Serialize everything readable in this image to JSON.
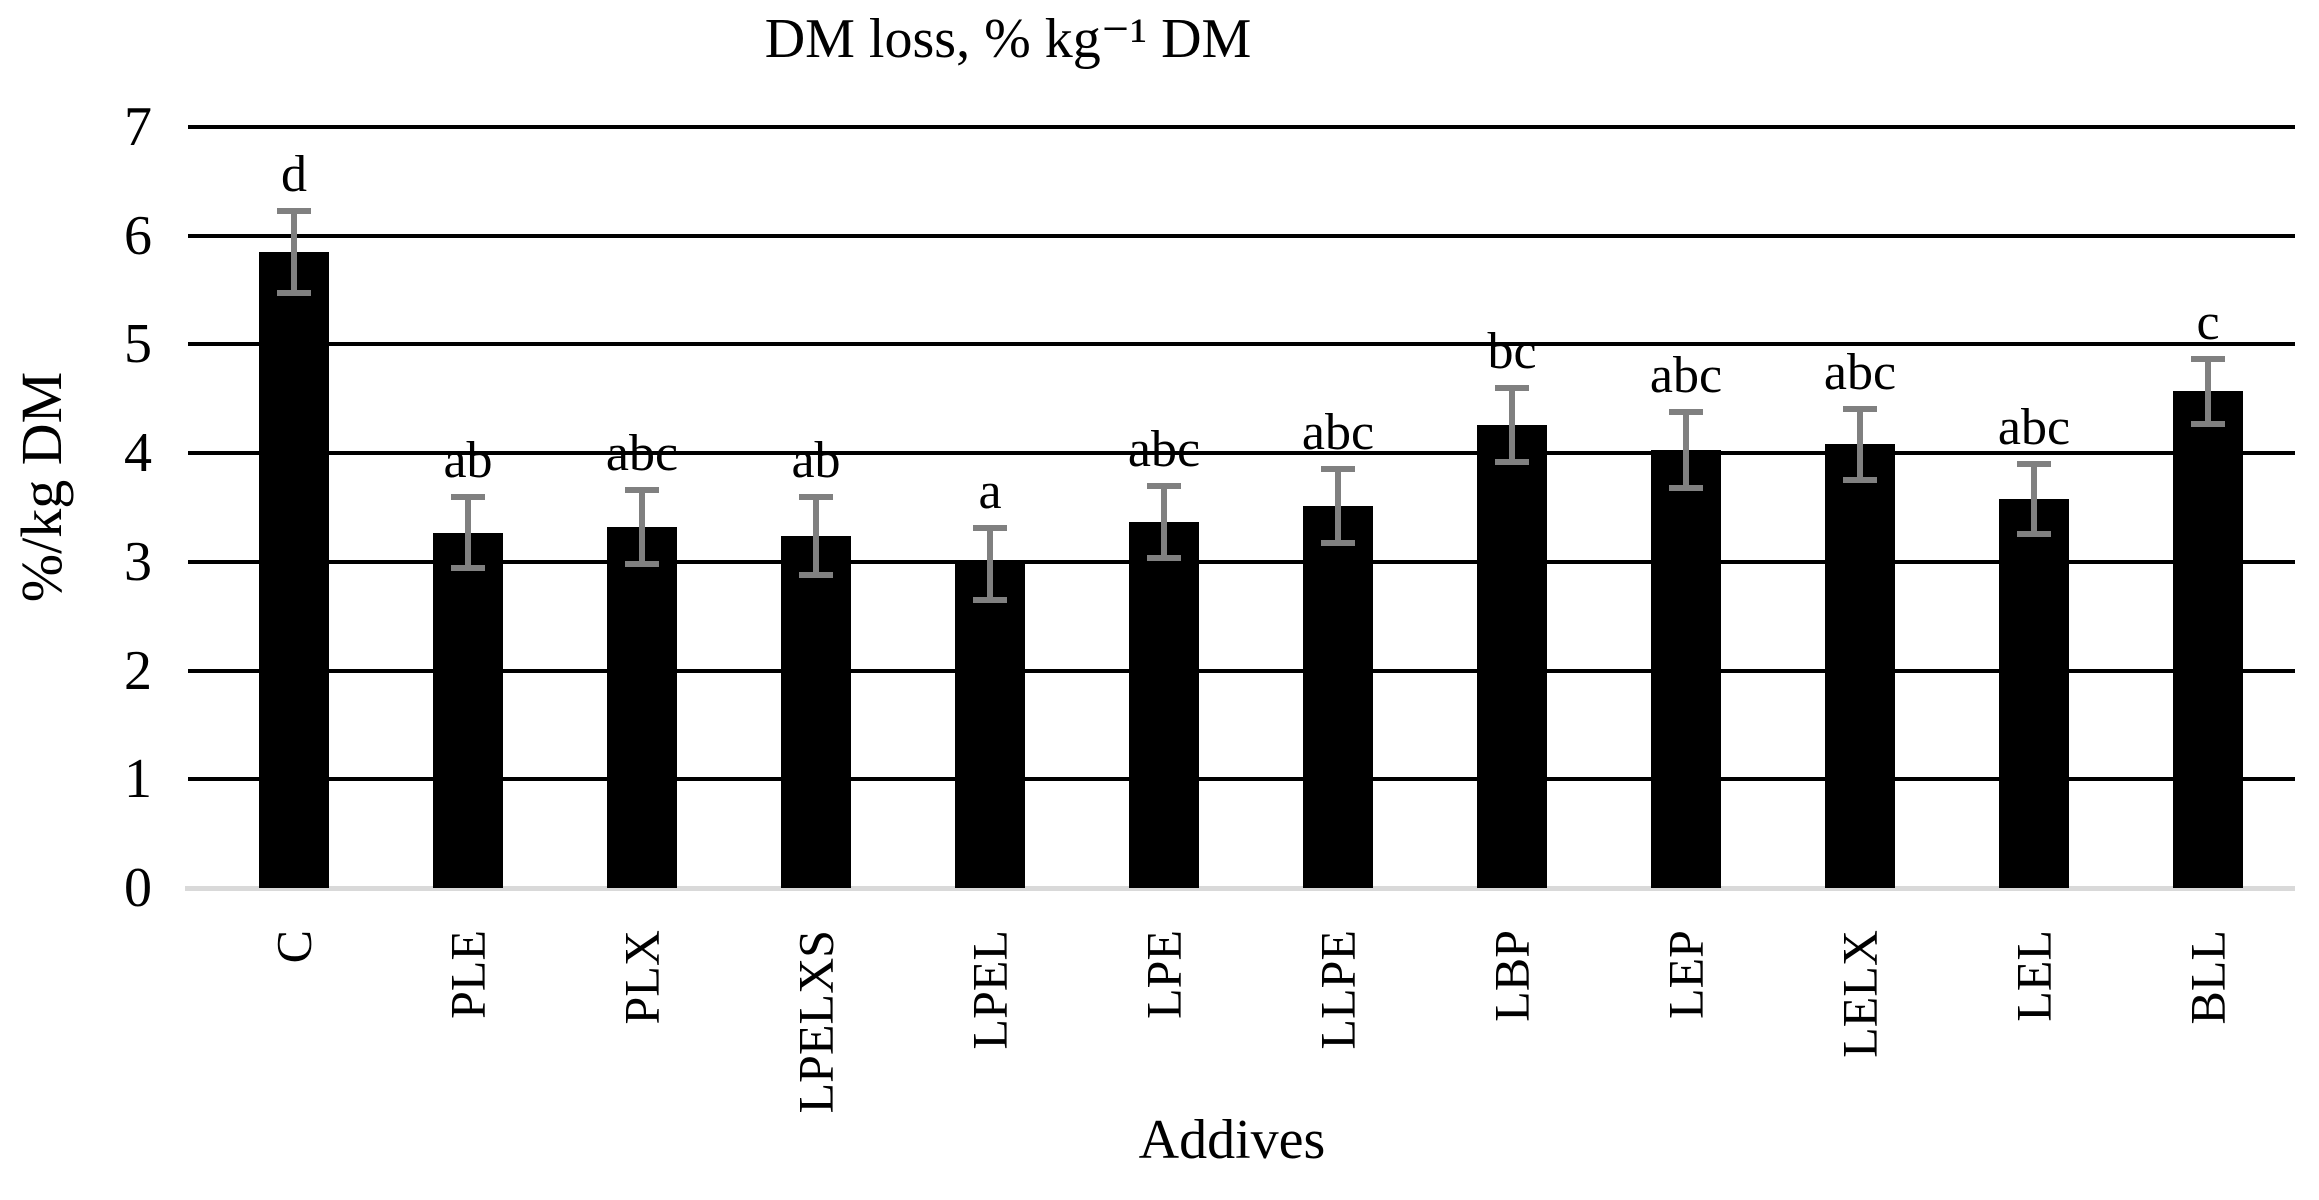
{
  "title": "DM loss, % kg⁻¹ DM",
  "y_axis": {
    "label": "%/kg DM"
  },
  "x_axis": {
    "label": "Addives"
  },
  "chart_data": {
    "type": "bar",
    "title": "DM loss, % kg⁻¹ DM",
    "xlabel": "Addives",
    "ylabel": "%/kg DM",
    "ylim": [
      0,
      7
    ],
    "y_ticks": [
      0,
      1,
      2,
      3,
      4,
      5,
      6,
      7
    ],
    "grid": true,
    "legend": "none",
    "bar_color": "#000000",
    "error_bar_color": "#808080",
    "categories": [
      "C",
      "PLE",
      "PLX",
      "LPELXS",
      "LPEL",
      "LPE",
      "LLPE",
      "LBP",
      "LEP",
      "LELX",
      "LEL",
      "BLL"
    ],
    "values": [
      5.85,
      3.27,
      3.32,
      3.24,
      2.98,
      3.37,
      3.51,
      4.26,
      4.03,
      4.08,
      3.58,
      4.57
    ],
    "errors": [
      0.38,
      0.33,
      0.34,
      0.36,
      0.33,
      0.33,
      0.34,
      0.34,
      0.35,
      0.33,
      0.32,
      0.3
    ],
    "sig_letters": [
      "d",
      "ab",
      "abc",
      "ab",
      "a",
      "abc",
      "abc",
      "bc",
      "abc",
      "abc",
      "abc",
      "c"
    ]
  }
}
